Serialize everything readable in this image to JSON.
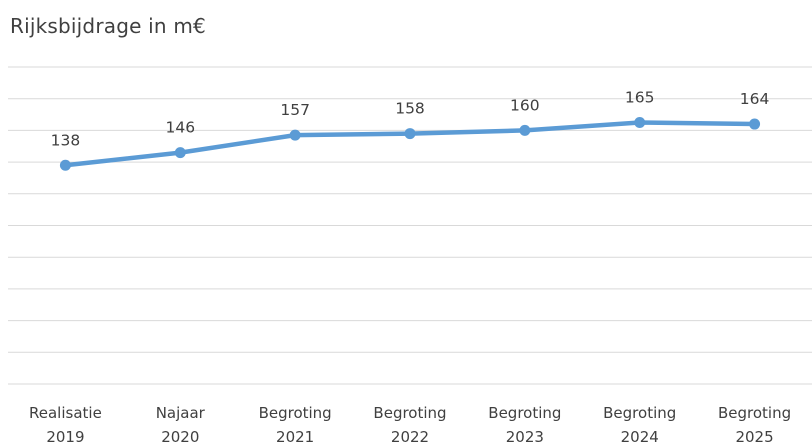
{
  "chart_data": {
    "type": "line",
    "title": "Rijksbijdrage in m€",
    "xlabel": "",
    "ylabel": "",
    "categories": [
      [
        "Realisatie",
        "2019"
      ],
      [
        "Najaar",
        "2020"
      ],
      [
        "Begroting",
        "2021"
      ],
      [
        "Begroting",
        "2022"
      ],
      [
        "Begroting",
        "2023"
      ],
      [
        "Begroting",
        "2024"
      ],
      [
        "Begroting",
        "2025"
      ]
    ],
    "series": [
      {
        "values": [
          138,
          146,
          157,
          158,
          160,
          165,
          164
        ]
      }
    ],
    "ylim": [
      0,
      200
    ],
    "gridlines": true,
    "y_axis_labels_shown": false,
    "legend": "none",
    "colors": {
      "line": "#5b9bd5",
      "grid": "#d9d9d9",
      "text": "#404040"
    }
  }
}
